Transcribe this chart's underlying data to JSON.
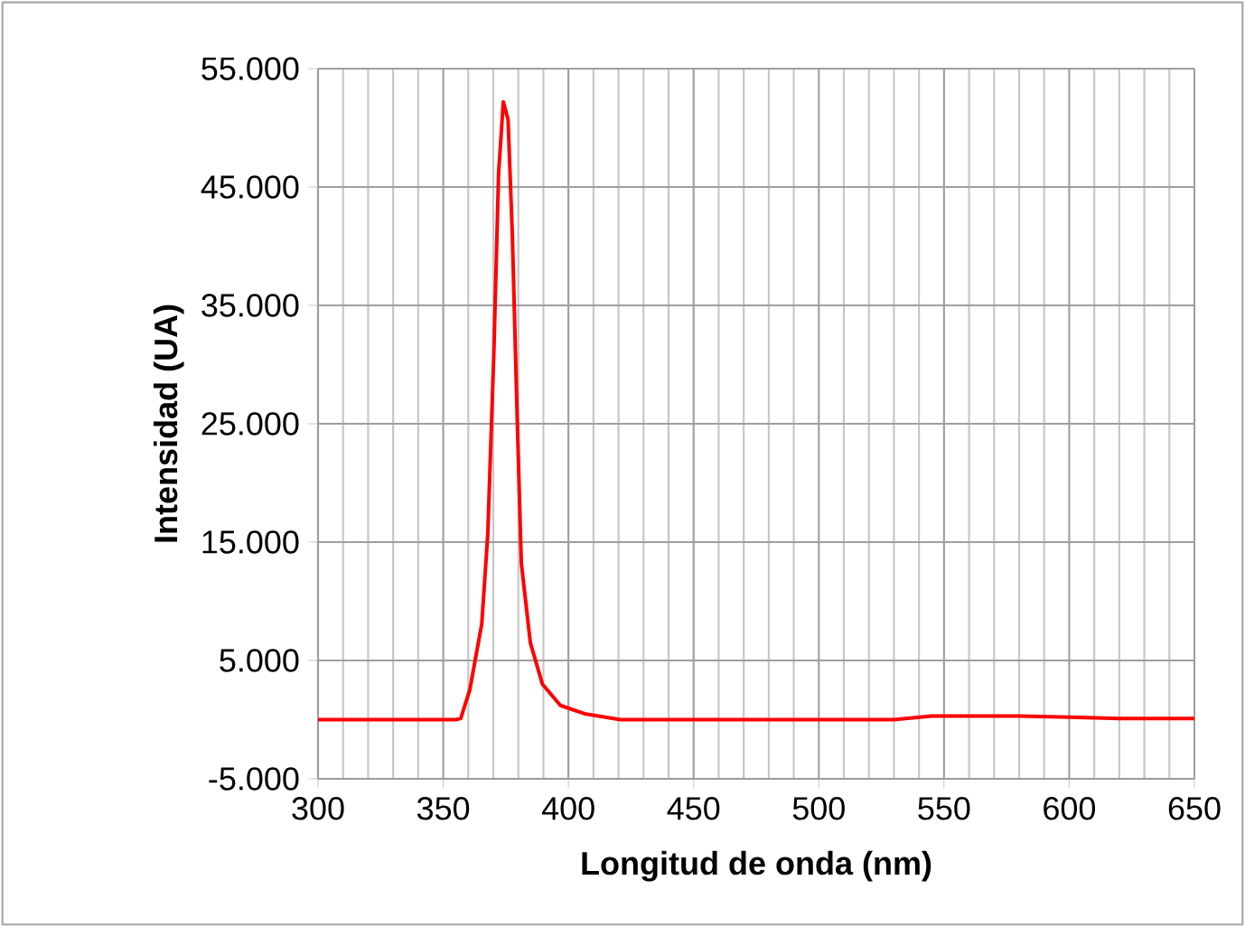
{
  "chart_data": {
    "type": "line",
    "xlabel": "Longitud de onda (nm)",
    "ylabel": "Intensidad (UA)",
    "x": [
      300,
      330,
      355,
      357,
      360.6,
      365.4,
      367.8,
      370.2,
      372.1,
      374,
      375.9,
      377.6,
      379.5,
      381.2,
      384.8,
      389.6,
      396.8,
      406.4,
      420.8,
      460,
      500,
      530,
      545,
      560,
      580,
      600,
      620,
      650
    ],
    "series": [
      {
        "color": "#ff0000",
        "values": [
          0,
          0,
          0,
          100,
          2500,
          8100,
          15700,
          30900,
          46100,
          52200,
          50700,
          41000,
          25800,
          13200,
          6500,
          3000,
          1200,
          500,
          0,
          0,
          0,
          0,
          300,
          300,
          300,
          200,
          100,
          100
        ]
      }
    ],
    "xlim": [
      300,
      650
    ],
    "xticks": [
      300,
      350,
      400,
      450,
      500,
      550,
      600,
      650
    ],
    "ylim": [
      -5000,
      55000
    ],
    "yticks": [
      {
        "value": -5000,
        "label": "-5.000"
      },
      {
        "value": 5000,
        "label": "5.000"
      },
      {
        "value": 15000,
        "label": "15.000"
      },
      {
        "value": 25000,
        "label": "25.000"
      },
      {
        "value": 35000,
        "label": "35.000"
      },
      {
        "value": 45000,
        "label": "45.000"
      },
      {
        "value": 55000,
        "label": "55.000"
      }
    ],
    "grid": true,
    "marker": "none",
    "line_style": "solid"
  }
}
